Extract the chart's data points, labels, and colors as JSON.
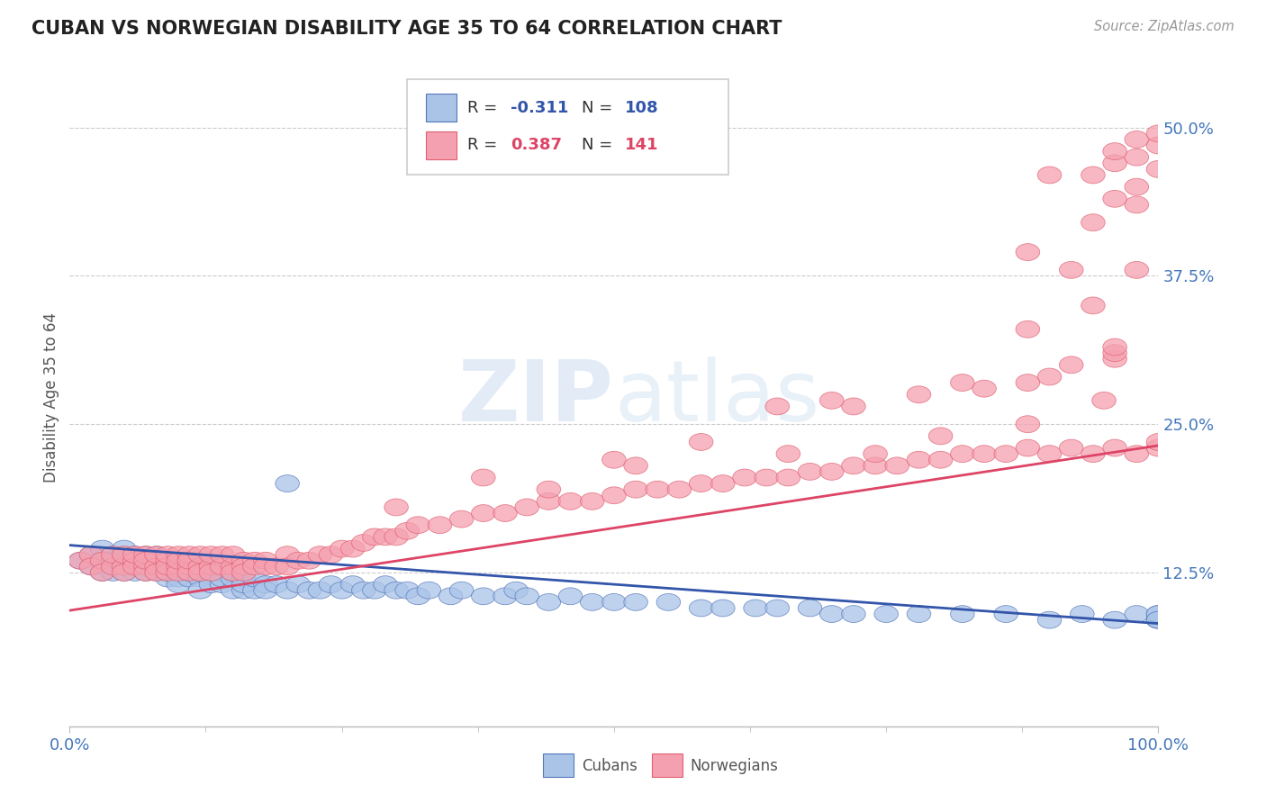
{
  "title": "CUBAN VS NORWEGIAN DISABILITY AGE 35 TO 64 CORRELATION CHART",
  "source": "Source: ZipAtlas.com",
  "ylabel": "Disability Age 35 to 64",
  "xlim": [
    0.0,
    1.0
  ],
  "ylim": [
    -0.005,
    0.55
  ],
  "cubans_R": -0.311,
  "cubans_N": 108,
  "norwegians_R": 0.387,
  "norwegians_N": 141,
  "cuban_color": "#aac4e8",
  "norwegian_color": "#f5a0b0",
  "cuban_edge_color": "#5577bb",
  "norwegian_edge_color": "#e06070",
  "cuban_line_color": "#3355aa",
  "norwegian_line_color": "#dd4466",
  "watermark_color": "#dde8f5",
  "background_color": "#ffffff",
  "grid_color": "#cccccc",
  "title_color": "#222222",
  "axis_label_color": "#4477bb",
  "axis_tick_color": "#888888",
  "cubans_x": [
    0.01,
    0.02,
    0.02,
    0.03,
    0.03,
    0.03,
    0.04,
    0.04,
    0.04,
    0.04,
    0.05,
    0.05,
    0.05,
    0.05,
    0.05,
    0.06,
    0.06,
    0.06,
    0.06,
    0.07,
    0.07,
    0.07,
    0.07,
    0.08,
    0.08,
    0.08,
    0.08,
    0.09,
    0.09,
    0.09,
    0.09,
    0.1,
    0.1,
    0.1,
    0.1,
    0.1,
    0.11,
    0.11,
    0.11,
    0.11,
    0.12,
    0.12,
    0.12,
    0.12,
    0.13,
    0.13,
    0.13,
    0.14,
    0.14,
    0.14,
    0.15,
    0.15,
    0.15,
    0.16,
    0.16,
    0.16,
    0.17,
    0.17,
    0.18,
    0.18,
    0.19,
    0.2,
    0.2,
    0.21,
    0.22,
    0.23,
    0.24,
    0.25,
    0.26,
    0.27,
    0.28,
    0.29,
    0.3,
    0.31,
    0.32,
    0.33,
    0.35,
    0.36,
    0.38,
    0.4,
    0.41,
    0.42,
    0.44,
    0.46,
    0.48,
    0.5,
    0.52,
    0.55,
    0.58,
    0.6,
    0.63,
    0.65,
    0.68,
    0.7,
    0.72,
    0.75,
    0.78,
    0.82,
    0.86,
    0.9,
    0.93,
    0.96,
    0.98,
    1.0,
    1.0,
    1.0,
    1.0,
    1.0
  ],
  "cubans_y": [
    0.135,
    0.14,
    0.13,
    0.145,
    0.135,
    0.125,
    0.13,
    0.14,
    0.125,
    0.135,
    0.13,
    0.14,
    0.125,
    0.135,
    0.145,
    0.13,
    0.14,
    0.125,
    0.135,
    0.13,
    0.14,
    0.125,
    0.135,
    0.13,
    0.14,
    0.125,
    0.135,
    0.13,
    0.12,
    0.135,
    0.125,
    0.13,
    0.12,
    0.135,
    0.125,
    0.115,
    0.13,
    0.12,
    0.135,
    0.125,
    0.13,
    0.12,
    0.11,
    0.125,
    0.115,
    0.125,
    0.13,
    0.115,
    0.125,
    0.12,
    0.11,
    0.12,
    0.125,
    0.11,
    0.12,
    0.115,
    0.11,
    0.12,
    0.115,
    0.11,
    0.115,
    0.2,
    0.11,
    0.115,
    0.11,
    0.11,
    0.115,
    0.11,
    0.115,
    0.11,
    0.11,
    0.115,
    0.11,
    0.11,
    0.105,
    0.11,
    0.105,
    0.11,
    0.105,
    0.105,
    0.11,
    0.105,
    0.1,
    0.105,
    0.1,
    0.1,
    0.1,
    0.1,
    0.095,
    0.095,
    0.095,
    0.095,
    0.095,
    0.09,
    0.09,
    0.09,
    0.09,
    0.09,
    0.09,
    0.085,
    0.09,
    0.085,
    0.09,
    0.085,
    0.09,
    0.085,
    0.09,
    0.085
  ],
  "norwegians_x": [
    0.01,
    0.02,
    0.02,
    0.03,
    0.03,
    0.04,
    0.04,
    0.05,
    0.05,
    0.05,
    0.06,
    0.06,
    0.06,
    0.07,
    0.07,
    0.07,
    0.07,
    0.08,
    0.08,
    0.08,
    0.09,
    0.09,
    0.09,
    0.09,
    0.1,
    0.1,
    0.1,
    0.1,
    0.11,
    0.11,
    0.11,
    0.11,
    0.12,
    0.12,
    0.12,
    0.13,
    0.13,
    0.13,
    0.14,
    0.14,
    0.15,
    0.15,
    0.15,
    0.16,
    0.16,
    0.16,
    0.17,
    0.17,
    0.18,
    0.18,
    0.19,
    0.2,
    0.2,
    0.21,
    0.22,
    0.23,
    0.24,
    0.25,
    0.26,
    0.27,
    0.28,
    0.29,
    0.3,
    0.31,
    0.32,
    0.34,
    0.36,
    0.38,
    0.4,
    0.42,
    0.44,
    0.46,
    0.48,
    0.5,
    0.52,
    0.54,
    0.56,
    0.58,
    0.6,
    0.62,
    0.64,
    0.66,
    0.68,
    0.7,
    0.72,
    0.74,
    0.76,
    0.78,
    0.8,
    0.82,
    0.84,
    0.86,
    0.88,
    0.9,
    0.92,
    0.94,
    0.96,
    0.98,
    1.0,
    1.0,
    0.38,
    0.5,
    0.58,
    0.3,
    0.44,
    0.52,
    0.66,
    0.74,
    0.8,
    0.88,
    0.95,
    0.72,
    0.84,
    0.9,
    0.96,
    0.65,
    0.78,
    0.88,
    0.96,
    0.7,
    0.82,
    0.92,
    0.96,
    0.88,
    0.94,
    0.98,
    0.92,
    0.88,
    0.94,
    0.98,
    0.9,
    0.96,
    0.94,
    0.98,
    1.0,
    0.96,
    0.98,
    1.0,
    0.96,
    0.98,
    1.0
  ],
  "norwegians_y": [
    0.135,
    0.14,
    0.13,
    0.135,
    0.125,
    0.13,
    0.14,
    0.13,
    0.14,
    0.125,
    0.135,
    0.13,
    0.14,
    0.13,
    0.14,
    0.125,
    0.135,
    0.13,
    0.14,
    0.125,
    0.135,
    0.125,
    0.13,
    0.14,
    0.13,
    0.14,
    0.125,
    0.135,
    0.13,
    0.14,
    0.125,
    0.135,
    0.13,
    0.14,
    0.125,
    0.13,
    0.14,
    0.125,
    0.13,
    0.14,
    0.13,
    0.14,
    0.125,
    0.135,
    0.13,
    0.125,
    0.135,
    0.13,
    0.135,
    0.13,
    0.13,
    0.14,
    0.13,
    0.135,
    0.135,
    0.14,
    0.14,
    0.145,
    0.145,
    0.15,
    0.155,
    0.155,
    0.155,
    0.16,
    0.165,
    0.165,
    0.17,
    0.175,
    0.175,
    0.18,
    0.185,
    0.185,
    0.185,
    0.19,
    0.195,
    0.195,
    0.195,
    0.2,
    0.2,
    0.205,
    0.205,
    0.205,
    0.21,
    0.21,
    0.215,
    0.215,
    0.215,
    0.22,
    0.22,
    0.225,
    0.225,
    0.225,
    0.23,
    0.225,
    0.23,
    0.225,
    0.23,
    0.225,
    0.23,
    0.235,
    0.205,
    0.22,
    0.235,
    0.18,
    0.195,
    0.215,
    0.225,
    0.225,
    0.24,
    0.25,
    0.27,
    0.265,
    0.28,
    0.29,
    0.305,
    0.265,
    0.275,
    0.285,
    0.31,
    0.27,
    0.285,
    0.3,
    0.315,
    0.33,
    0.35,
    0.38,
    0.38,
    0.395,
    0.42,
    0.435,
    0.46,
    0.47,
    0.46,
    0.475,
    0.485,
    0.44,
    0.45,
    0.465,
    0.48,
    0.49,
    0.495
  ]
}
